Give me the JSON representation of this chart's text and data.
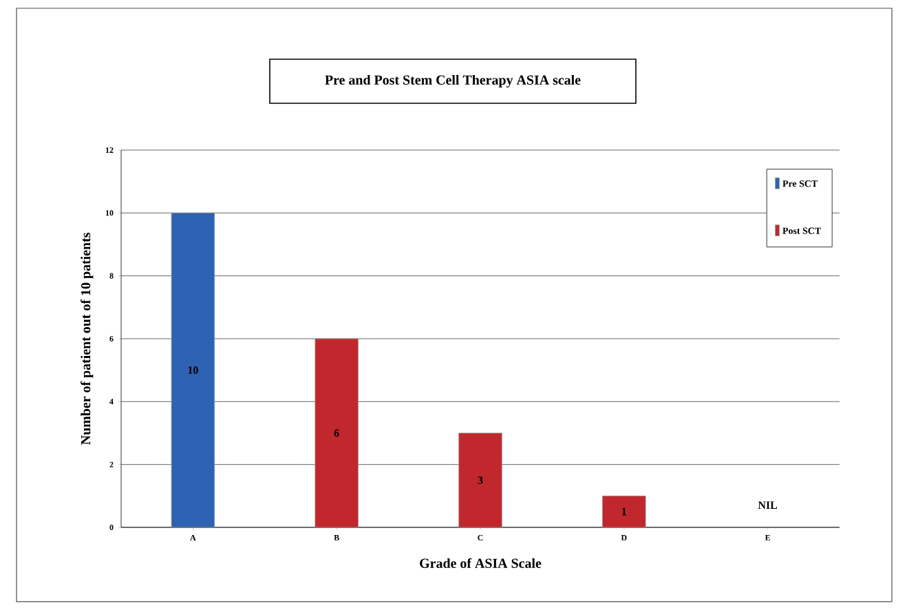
{
  "chart_data": {
    "type": "bar",
    "title": "Pre and Post Stem Cell Therapy ASIA scale",
    "xlabel": "Grade of ASIA Scale",
    "ylabel": "Number of patient out of 10 patients",
    "categories": [
      "A",
      "B",
      "C",
      "D",
      "E"
    ],
    "series": [
      {
        "name": "Pre SCT",
        "color": "#2e62b3",
        "values": [
          10,
          null,
          null,
          null,
          null
        ]
      },
      {
        "name": "Post SCT",
        "color": "#c0282d",
        "values": [
          null,
          6,
          3,
          1,
          null
        ]
      }
    ],
    "ylim": [
      0,
      12
    ],
    "yticks": [
      0,
      2,
      4,
      6,
      8,
      10,
      12
    ],
    "grid": "y",
    "legend": "top right",
    "data_labels": true,
    "annotations": [
      "NIL"
    ]
  }
}
